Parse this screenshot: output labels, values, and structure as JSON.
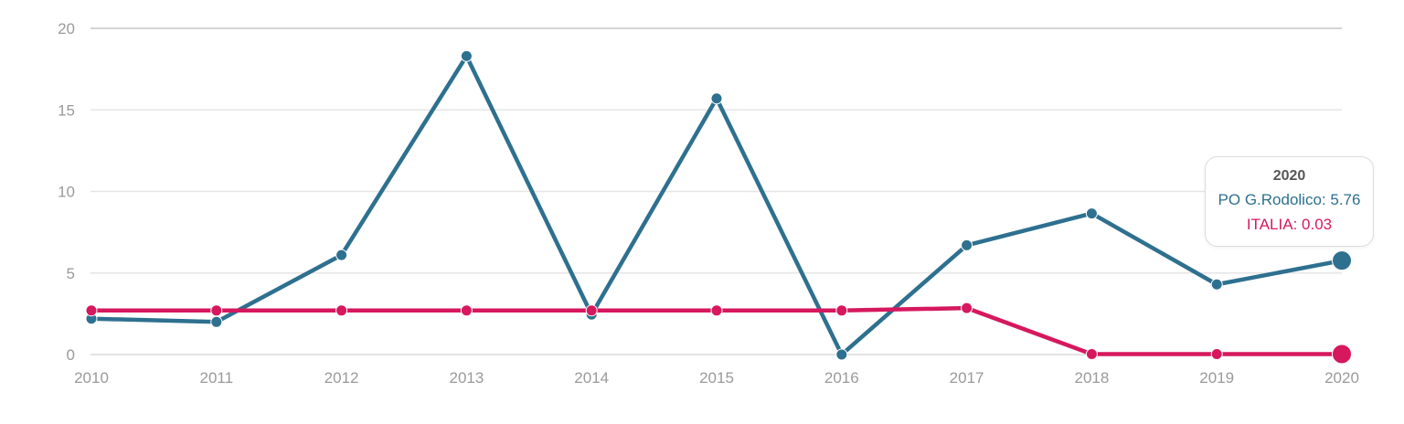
{
  "chart_data": {
    "type": "line",
    "categories": [
      "2010",
      "2011",
      "2012",
      "2013",
      "2014",
      "2015",
      "2016",
      "2017",
      "2018",
      "2019",
      "2020"
    ],
    "series": [
      {
        "name": "PO G.Rodolico",
        "color": "#2e708f",
        "values": [
          2.2,
          2.0,
          6.1,
          18.3,
          2.45,
          15.7,
          0,
          6.7,
          8.65,
          4.3,
          5.76
        ]
      },
      {
        "name": "ITALIA",
        "color": "#d6185e",
        "values": [
          2.7,
          2.7,
          2.7,
          2.7,
          2.7,
          2.7,
          2.7,
          2.85,
          0.03,
          0.03,
          0.03
        ]
      }
    ],
    "title": "",
    "xlabel": "",
    "ylabel": "",
    "ylim": [
      0,
      20
    ],
    "yticks": [
      0,
      5,
      10,
      15,
      20
    ],
    "grid": true,
    "legend_position": "none",
    "highlighted_category": "2020",
    "grid_color": "#e6e6e6",
    "grid_color_top": "#c6c6c6",
    "grid_color_zero": "#dadada",
    "tick_color": "#9a9a9a"
  },
  "tooltip": {
    "year": "2020",
    "rows": [
      {
        "text": "PO G.Rodolico: 5.76",
        "color": "#2e708f"
      },
      {
        "text": "ITALIA: 0.03",
        "color": "#d6185e"
      }
    ]
  }
}
